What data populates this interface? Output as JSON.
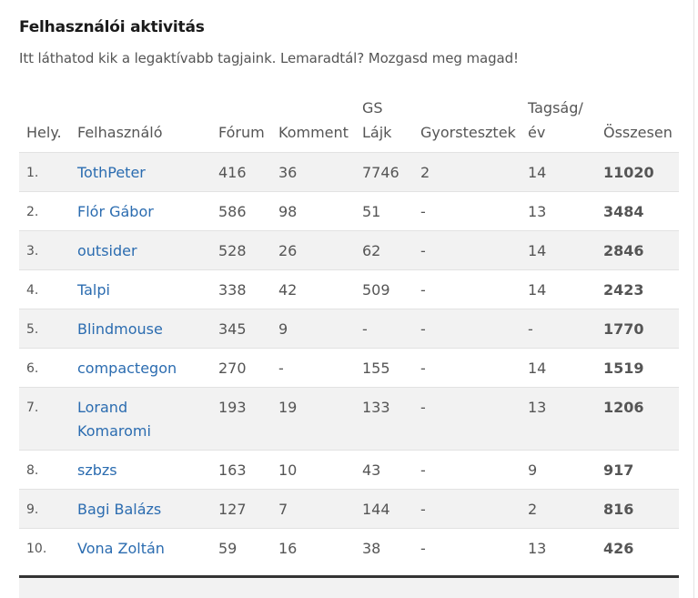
{
  "header": {
    "title": "Felhasználói aktivitás",
    "subtitle": "Itt láthatod kik a legaktívabb tagjaink. Lemaradtál? Mozgasd meg magad!"
  },
  "table": {
    "columns": {
      "rank": "Hely.",
      "user": "Felhasználó",
      "forum": "Fórum",
      "comment": "Komment",
      "gs_likes_line1": "GS",
      "gs_likes_line2": "Lájk",
      "quiz": "Gyorstesztek",
      "membership_line1": "Tagság/",
      "membership_line2": "év",
      "total": "Összesen"
    },
    "rows": [
      {
        "rank": "1.",
        "user": "TothPeter",
        "forum": "416",
        "comment": "36",
        "gs_likes": "7746",
        "quiz": "2",
        "membership": "14",
        "total": "11020"
      },
      {
        "rank": "2.",
        "user": "Flór Gábor",
        "forum": "586",
        "comment": "98",
        "gs_likes": "51",
        "quiz": "-",
        "membership": "13",
        "total": "3484"
      },
      {
        "rank": "3.",
        "user": "outsider",
        "forum": "528",
        "comment": "26",
        "gs_likes": "62",
        "quiz": "-",
        "membership": "14",
        "total": "2846"
      },
      {
        "rank": "4.",
        "user": "Talpi",
        "forum": "338",
        "comment": "42",
        "gs_likes": "509",
        "quiz": "-",
        "membership": "14",
        "total": "2423"
      },
      {
        "rank": "5.",
        "user": "Blindmouse",
        "forum": "345",
        "comment": "9",
        "gs_likes": "-",
        "quiz": "-",
        "membership": "-",
        "total": "1770"
      },
      {
        "rank": "6.",
        "user": "compactegon",
        "forum": "270",
        "comment": "-",
        "gs_likes": "155",
        "quiz": "-",
        "membership": "14",
        "total": "1519"
      },
      {
        "rank": "7.",
        "user_line1": "Lorand",
        "user_line2": "Komaromi",
        "forum": "193",
        "comment": "19",
        "gs_likes": "133",
        "quiz": "-",
        "membership": "13",
        "total": "1206"
      },
      {
        "rank": "8.",
        "user": "szbzs",
        "forum": "163",
        "comment": "10",
        "gs_likes": "43",
        "quiz": "-",
        "membership": "9",
        "total": "917"
      },
      {
        "rank": "9.",
        "user": "Bagi Balázs",
        "forum": "127",
        "comment": "7",
        "gs_likes": "144",
        "quiz": "-",
        "membership": "2",
        "total": "816"
      },
      {
        "rank": "10.",
        "user": "Vona Zoltán",
        "forum": "59",
        "comment": "16",
        "gs_likes": "38",
        "quiz": "-",
        "membership": "13",
        "total": "426"
      }
    ]
  },
  "colors": {
    "link": "#2b6cb0",
    "text": "#555555",
    "title": "#1a1a1a",
    "stripe": "#f2f2f2"
  }
}
